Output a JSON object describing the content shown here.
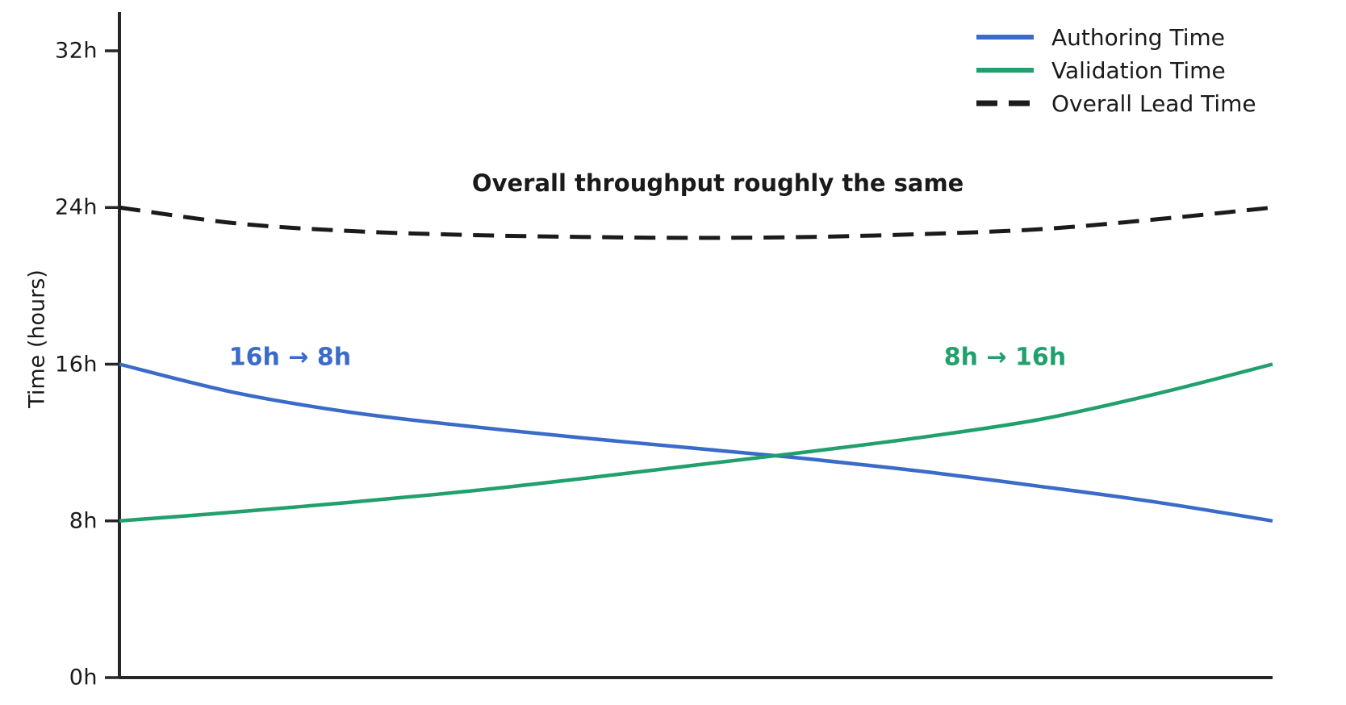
{
  "chart_data": {
    "type": "line",
    "title": "",
    "xlabel": "",
    "ylabel": "Time (hours)",
    "x_axis": {
      "tick_labels_visible": false,
      "range_progress": [
        0,
        1
      ]
    },
    "yticks": [
      {
        "label": "0h",
        "value": 0
      },
      {
        "label": "8h",
        "value": 8
      },
      {
        "label": "16h",
        "value": 16
      },
      {
        "label": "24h",
        "value": 24
      },
      {
        "label": "32h",
        "value": 32
      }
    ],
    "ylim": [
      0,
      34
    ],
    "grid": false,
    "legend_position": "upper right",
    "x": [
      0,
      0.1,
      0.2,
      0.3,
      0.4,
      0.5,
      0.6,
      0.7,
      0.8,
      0.9,
      1.0
    ],
    "series": [
      {
        "name": "Authoring Time",
        "color": "#3a6bc9",
        "style": "solid",
        "values": [
          16.0,
          14.55,
          13.55,
          12.85,
          12.25,
          11.7,
          11.15,
          10.5,
          9.75,
          8.95,
          8.0
        ]
      },
      {
        "name": "Validation Time",
        "color": "#21a06e",
        "style": "solid",
        "values": [
          8.0,
          8.45,
          8.95,
          9.5,
          10.15,
          10.85,
          11.55,
          12.3,
          13.2,
          14.5,
          16.0
        ]
      },
      {
        "name": "Overall Lead Time",
        "color": "#1b1b1b",
        "style": "dashed",
        "values": [
          24.0,
          23.2,
          22.8,
          22.6,
          22.5,
          22.45,
          22.5,
          22.65,
          22.9,
          23.4,
          24.0
        ]
      }
    ],
    "crossing_point": {
      "x_progress": 0.57,
      "value_hours": 11.3
    },
    "annotations": [
      {
        "id": "overall",
        "text": "Overall throughput roughly the same",
        "color": "#1a1a1a",
        "x": 0.519,
        "y": 25.25
      },
      {
        "id": "authoring",
        "text": "16h → 8h",
        "color": "#3a6bc9",
        "x": 0.148,
        "y": 16.35
      },
      {
        "id": "validation",
        "text": "8h → 16h",
        "color": "#21a06e",
        "x": 0.768,
        "y": 16.35
      }
    ],
    "axis_color": "#262626"
  }
}
